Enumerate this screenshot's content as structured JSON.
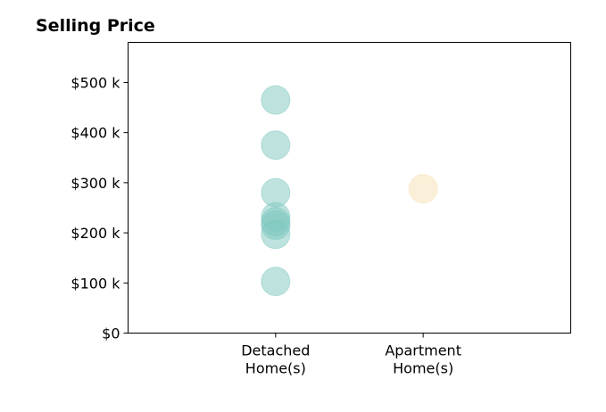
{
  "chart_data": {
    "type": "scatter",
    "title": "Selling Price",
    "xlabel": "",
    "ylabel": "",
    "categories": [
      [
        "Detached",
        "Home(s)"
      ],
      [
        "Apartment",
        "Home(s)"
      ]
    ],
    "xlim": [
      -1,
      2
    ],
    "ylim": [
      0,
      580000
    ],
    "yticks": [
      0,
      100000,
      200000,
      300000,
      400000,
      500000
    ],
    "ytick_labels": [
      "$0",
      "$100 k",
      "$200 k",
      "$300 k",
      "$400 k",
      "$500 k"
    ],
    "grid": false,
    "legend": "none",
    "series": [
      {
        "category_index": 0,
        "color": "#7ec8c0",
        "values": [
          465000,
          375000,
          280000,
          232000,
          222000,
          215000,
          197000,
          103000
        ]
      },
      {
        "category_index": 1,
        "color": "#f5e1b3",
        "values": [
          288000
        ]
      }
    ]
  }
}
